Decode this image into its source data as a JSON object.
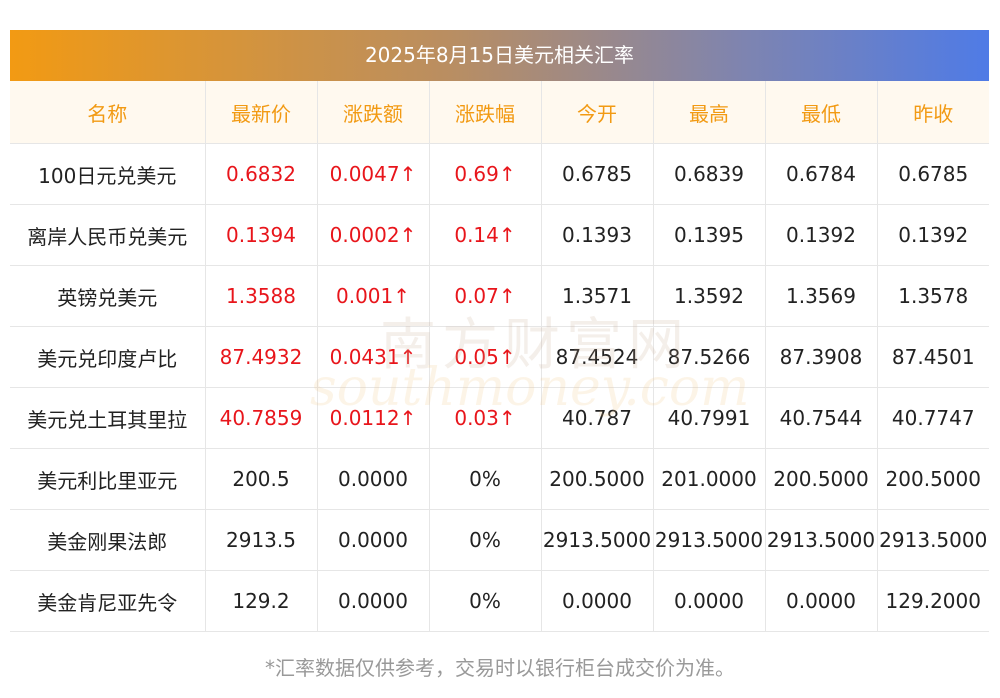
{
  "title": "2025年8月15日美元相关汇率",
  "headers": [
    "名称",
    "最新价",
    "涨跌额",
    "涨跌幅",
    "今开",
    "最高",
    "最低",
    "昨收"
  ],
  "rows": [
    {
      "name": "100日元兑美元",
      "latest": "0.6832",
      "change": "0.0047↑",
      "pct": "0.69↑",
      "open": "0.6785",
      "high": "0.6839",
      "low": "0.6784",
      "prev": "0.6785",
      "up": true
    },
    {
      "name": "离岸人民币兑美元",
      "latest": "0.1394",
      "change": "0.0002↑",
      "pct": "0.14↑",
      "open": "0.1393",
      "high": "0.1395",
      "low": "0.1392",
      "prev": "0.1392",
      "up": true
    },
    {
      "name": "英镑兑美元",
      "latest": "1.3588",
      "change": "0.001↑",
      "pct": "0.07↑",
      "open": "1.3571",
      "high": "1.3592",
      "low": "1.3569",
      "prev": "1.3578",
      "up": true
    },
    {
      "name": "美元兑印度卢比",
      "latest": "87.4932",
      "change": "0.0431↑",
      "pct": "0.05↑",
      "open": "87.4524",
      "high": "87.5266",
      "low": "87.3908",
      "prev": "87.4501",
      "up": true
    },
    {
      "name": "美元兑土耳其里拉",
      "latest": "40.7859",
      "change": "0.0112↑",
      "pct": "0.03↑",
      "open": "40.787",
      "high": "40.7991",
      "low": "40.7544",
      "prev": "40.7747",
      "up": true
    },
    {
      "name": "美元利比里亚元",
      "latest": "200.5",
      "change": "0.0000",
      "pct": "0%",
      "open": "200.5000",
      "high": "201.0000",
      "low": "200.5000",
      "prev": "200.5000",
      "up": false
    },
    {
      "name": "美金刚果法郎",
      "latest": "2913.5",
      "change": "0.0000",
      "pct": "0%",
      "open": "2913.5000",
      "high": "2913.5000",
      "low": "2913.5000",
      "prev": "2913.5000",
      "up": false
    },
    {
      "name": "美金肯尼亚先令",
      "latest": "129.2",
      "change": "0.0000",
      "pct": "0%",
      "open": "0.0000",
      "high": "0.0000",
      "low": "0.0000",
      "prev": "129.2000",
      "up": false
    }
  ],
  "watermark": {
    "cn": "南方财富网",
    "en": "southmoney.com"
  },
  "footnote": "*汇率数据仅供参考，交易时以银行柜台成交价为准。",
  "colors": {
    "up": "#e8151b",
    "header_text": "#f29a13",
    "header_bg": "#fff9ef",
    "gradient_start": "#f29a13",
    "gradient_end": "#4f7be6"
  }
}
